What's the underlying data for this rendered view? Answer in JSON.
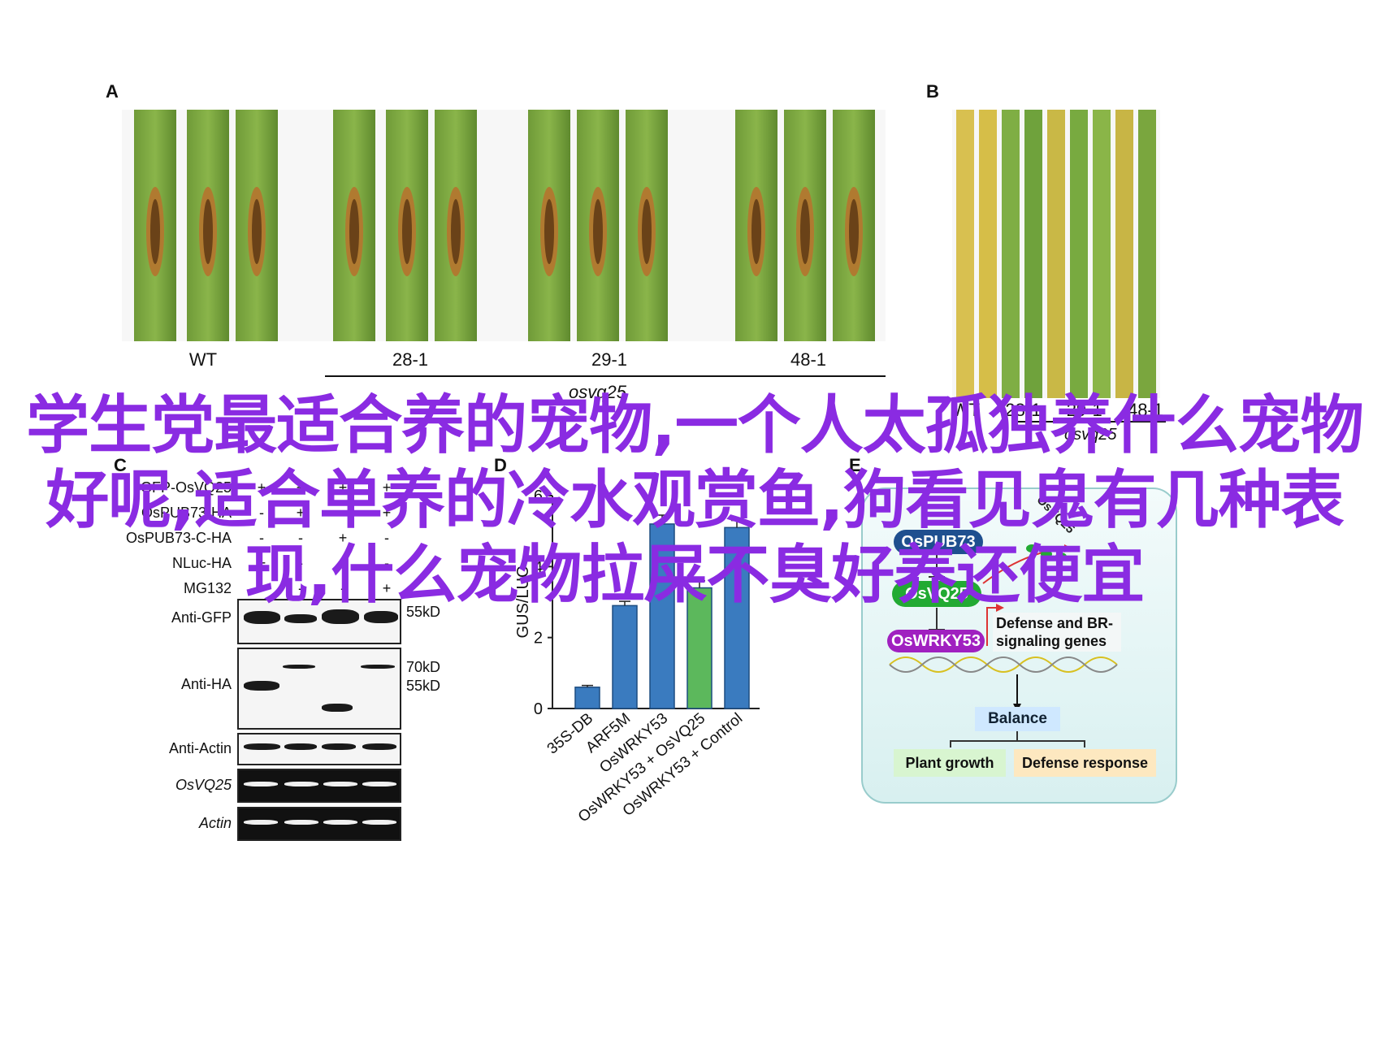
{
  "panels": {
    "a": "A",
    "b": "B",
    "c": "C",
    "d": "D",
    "e": "E"
  },
  "panel_a": {
    "leaf_groups": [
      "WT",
      "28-1",
      "29-1",
      "48-1"
    ],
    "group_label": "osvq25"
  },
  "panel_b": {
    "leaf_groups": [
      "WT",
      "28-1",
      "29-1",
      "48-1"
    ],
    "group_label": "osvq25"
  },
  "overlay_title": "学生党最适合养的宠物,一个人太孤独养什么宠物好呢,适合单养的冷水观赏鱼,狗看见鬼有几种表现,什么宠物拉屎不臭好养还便宜",
  "western_blot": {
    "rows": [
      {
        "label": "GFP-OsVQ25",
        "signs": [
          "+",
          "+",
          "+",
          "+"
        ]
      },
      {
        "label": "OsPUB73-HA",
        "signs": [
          "-",
          "+",
          "-",
          "+"
        ]
      },
      {
        "label": "OsPUB73-C-HA",
        "signs": [
          "-",
          "-",
          "+",
          "-"
        ]
      },
      {
        "label": "NLuc-HA",
        "signs": [
          "+",
          "-",
          "-",
          "-"
        ]
      },
      {
        "label": "MG132",
        "signs": [
          "-",
          "-",
          "-",
          "+"
        ]
      }
    ],
    "blots": [
      {
        "label": "Anti-GFP",
        "markers": [
          "55kD"
        ]
      },
      {
        "label": "Anti-HA",
        "markers": [
          "70kD",
          "55kD"
        ]
      },
      {
        "label": "Anti-Actin",
        "markers": []
      },
      {
        "label": "OsVQ25",
        "markers": []
      },
      {
        "label": "Actin",
        "markers": []
      }
    ]
  },
  "chart_data": {
    "type": "bar",
    "categories": [
      "35S-DB",
      "ARF5M",
      "OsWRKY53",
      "OsWRKY53 + OsVQ25",
      "OsWRKY53 + Control"
    ],
    "values": [
      0.6,
      2.9,
      5.2,
      3.4,
      5.1
    ],
    "errors": [
      0.05,
      0.12,
      0.25,
      0.2,
      0.2
    ],
    "bar_colors": [
      "#3a7bbf",
      "#3a7bbf",
      "#3a7bbf",
      "#5cb85c",
      "#3a7bbf"
    ],
    "ylabel": "GUS/LUC",
    "ylim": [
      0,
      6
    ],
    "yticks": [
      0,
      2,
      4,
      6
    ]
  },
  "diagram": {
    "nodes": {
      "pub": "OsPUB73",
      "vq": "OsVQ25",
      "wrky": "OsWRKY53",
      "genes": "Defense and BR-signaling genes",
      "balance": "Balance",
      "growth": "Plant growth",
      "defense": "Defense response",
      "vq_degraded": "OsVQ25"
    },
    "colors": {
      "pub": "#1f4f8f",
      "vq": "#22aa33",
      "wrky": "#a020c0",
      "balance_bg": "#cfe8ff",
      "growth_bg": "#d8f5d0",
      "defense_bg": "#fde8c0"
    }
  }
}
